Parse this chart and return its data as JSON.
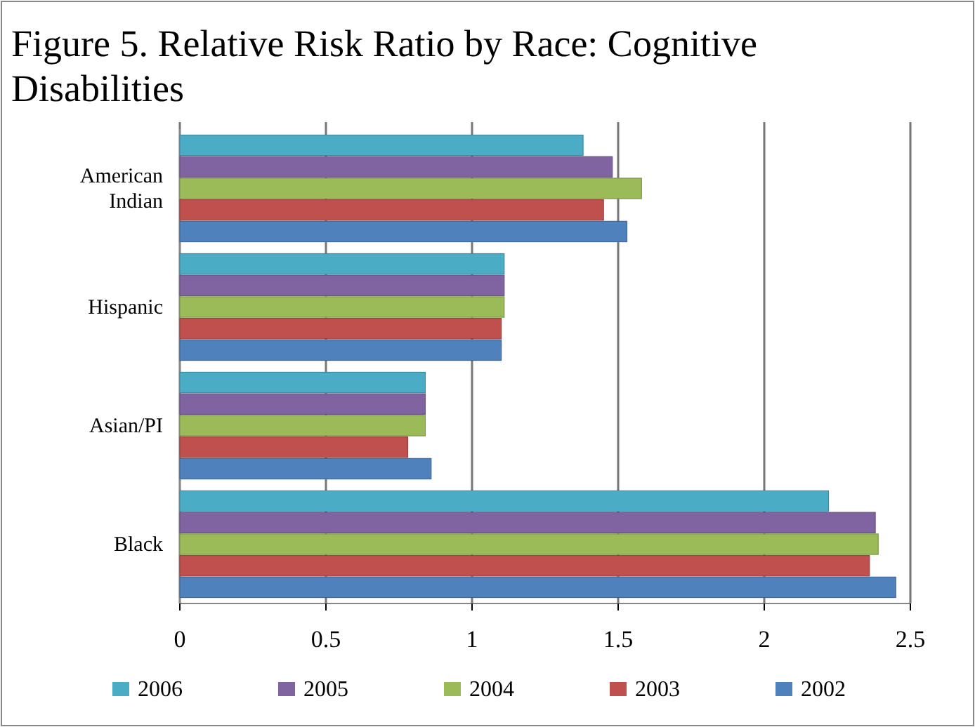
{
  "chart_data": {
    "type": "bar",
    "orientation": "horizontal",
    "title": "Figure 5. Relative Risk Ratio by Race: Cognitive Disabilities",
    "categories": [
      "American Indian",
      "Hispanic",
      "Asian/PI",
      "Black"
    ],
    "series": [
      {
        "name": "2006",
        "color": "#4bacc6",
        "values": [
          1.38,
          1.11,
          0.84,
          2.22
        ]
      },
      {
        "name": "2005",
        "color": "#8064a2",
        "values": [
          1.48,
          1.11,
          0.84,
          2.38
        ]
      },
      {
        "name": "2004",
        "color": "#9bbb59",
        "values": [
          1.58,
          1.11,
          0.84,
          2.39
        ]
      },
      {
        "name": "2003",
        "color": "#c0504d",
        "values": [
          1.45,
          1.1,
          0.78,
          2.36
        ]
      },
      {
        "name": "2002",
        "color": "#4f81bd",
        "values": [
          1.53,
          1.1,
          0.86,
          2.45
        ]
      }
    ],
    "xlim": [
      0,
      2.5
    ],
    "xticks": [
      0,
      0.5,
      1,
      1.5,
      2,
      2.5
    ],
    "grid": "x",
    "legend": "bottom"
  }
}
